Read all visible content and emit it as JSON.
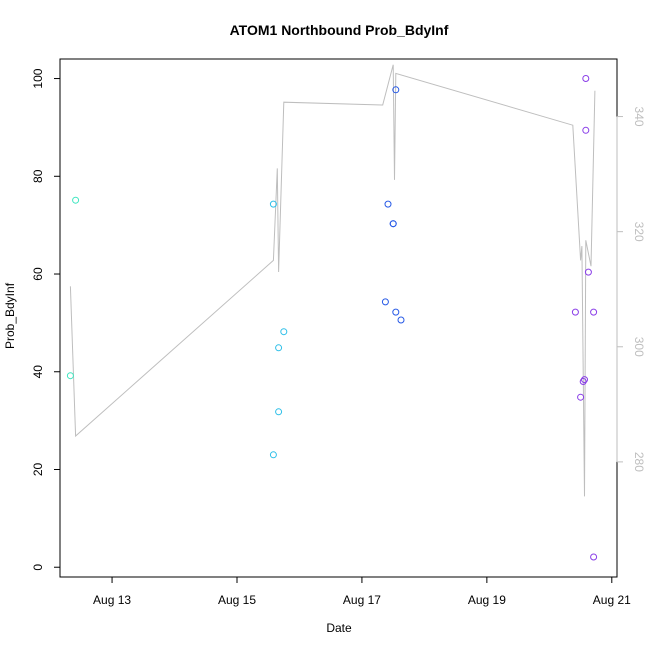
{
  "chart_data": {
    "type": "scatter",
    "title": "ATOM1 Northbound Prob_BdyInf",
    "xlabel": "Date",
    "ylabel": "Prob_BdyInf",
    "xlim": [
      "2023-08-12T04:00",
      "2023-08-21T02:00"
    ],
    "ylim": [
      -2,
      104
    ],
    "y2lim": [
      260,
      350
    ],
    "x_ticks": [
      {
        "date": "2023-08-13T00:00",
        "label": "Aug 13"
      },
      {
        "date": "2023-08-15T00:00",
        "label": "Aug 15"
      },
      {
        "date": "2023-08-17T00:00",
        "label": "Aug 17"
      },
      {
        "date": "2023-08-19T00:00",
        "label": "Aug 19"
      },
      {
        "date": "2023-08-21T00:00",
        "label": "Aug 21"
      }
    ],
    "y_ticks": [
      0,
      20,
      40,
      60,
      80,
      100
    ],
    "y2_ticks": [
      280,
      300,
      320,
      340
    ],
    "grid": false,
    "legend": "none",
    "colors": {
      "line": "#bebebe",
      "right_axis": "#bebebe"
    },
    "points": [
      {
        "x": "2023-08-12T08:00",
        "y": 39.2,
        "color": "#3ee6c0"
      },
      {
        "x": "2023-08-12T10:00",
        "y": 75.1,
        "color": "#3ee6c0"
      },
      {
        "x": "2023-08-15T14:00",
        "y": 74.3,
        "color": "#2ebfe8"
      },
      {
        "x": "2023-08-15T14:00",
        "y": 23.0,
        "color": "#2ebfe8"
      },
      {
        "x": "2023-08-15T16:00",
        "y": 31.8,
        "color": "#2ebfe8"
      },
      {
        "x": "2023-08-15T16:00",
        "y": 44.9,
        "color": "#2ebfe8"
      },
      {
        "x": "2023-08-15T18:00",
        "y": 48.2,
        "color": "#2ebfe8"
      },
      {
        "x": "2023-08-17T09:00",
        "y": 54.3,
        "color": "#2659e6"
      },
      {
        "x": "2023-08-17T10:00",
        "y": 74.3,
        "color": "#2659e6"
      },
      {
        "x": "2023-08-17T12:00",
        "y": 70.3,
        "color": "#2659e6"
      },
      {
        "x": "2023-08-17T12:00",
        "y": 70.3,
        "color": "#2659e6"
      },
      {
        "x": "2023-08-17T13:00",
        "y": 97.7,
        "color": "#2659e6"
      },
      {
        "x": "2023-08-17T13:00",
        "y": 52.2,
        "color": "#2659e6"
      },
      {
        "x": "2023-08-17T15:00",
        "y": 50.6,
        "color": "#2659e6"
      },
      {
        "x": "2023-08-20T10:00",
        "y": 52.2,
        "color": "#8a3ee8"
      },
      {
        "x": "2023-08-20T12:00",
        "y": 34.8,
        "color": "#8a3ee8"
      },
      {
        "x": "2023-08-20T13:00",
        "y": 38.0,
        "color": "#8a3ee8"
      },
      {
        "x": "2023-08-20T13:30",
        "y": 38.4,
        "color": "#8a3ee8"
      },
      {
        "x": "2023-08-20T14:00",
        "y": 89.4,
        "color": "#8a3ee8"
      },
      {
        "x": "2023-08-20T14:00",
        "y": 100.0,
        "color": "#8a3ee8"
      },
      {
        "x": "2023-08-20T15:00",
        "y": 60.4,
        "color": "#8a3ee8"
      },
      {
        "x": "2023-08-20T17:00",
        "y": 52.2,
        "color": "#8a3ee8"
      },
      {
        "x": "2023-08-20T17:00",
        "y": 2.1,
        "color": "#8a3ee8"
      }
    ],
    "line_series_right_axis": [
      {
        "x": "2023-08-12T08:00",
        "y": 310.5
      },
      {
        "x": "2023-08-12T10:00",
        "y": 284.5
      },
      {
        "x": "2023-08-15T14:00",
        "y": 315.0
      },
      {
        "x": "2023-08-15T15:30",
        "y": 331.0
      },
      {
        "x": "2023-08-15T16:00",
        "y": 313.0
      },
      {
        "x": "2023-08-15T18:00",
        "y": 342.5
      },
      {
        "x": "2023-08-17T08:00",
        "y": 342.0
      },
      {
        "x": "2023-08-17T12:00",
        "y": 349.0
      },
      {
        "x": "2023-08-17T12:30",
        "y": 329.0
      },
      {
        "x": "2023-08-17T13:00",
        "y": 347.5
      },
      {
        "x": "2023-08-20T09:00",
        "y": 338.5
      },
      {
        "x": "2023-08-20T12:00",
        "y": 315.0
      },
      {
        "x": "2023-08-20T12:30",
        "y": 317.5
      },
      {
        "x": "2023-08-20T13:30",
        "y": 274.0
      },
      {
        "x": "2023-08-20T14:00",
        "y": 318.5
      },
      {
        "x": "2023-08-20T16:00",
        "y": 314.0
      },
      {
        "x": "2023-08-20T17:30",
        "y": 344.5
      }
    ]
  }
}
